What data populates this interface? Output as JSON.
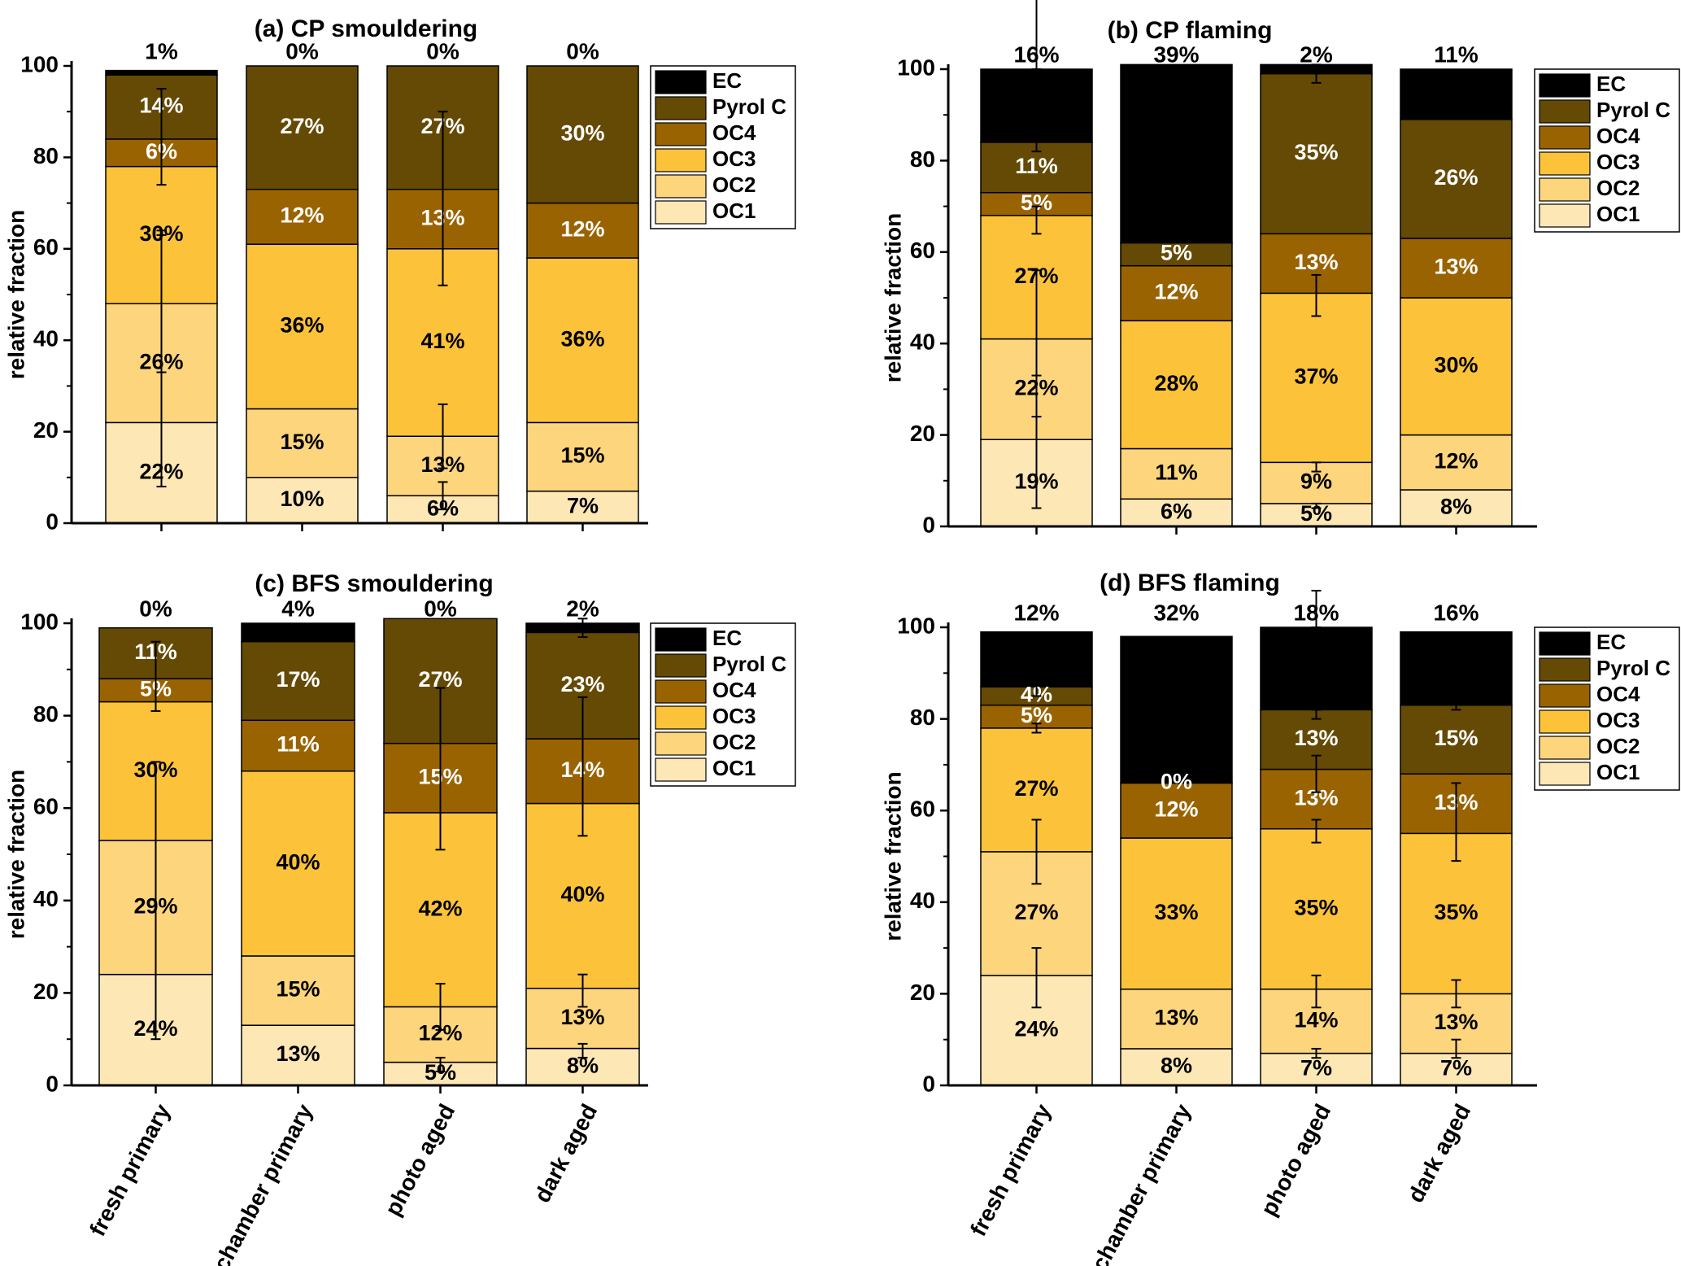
{
  "chart_data": [
    {
      "type": "bar",
      "stacked": true,
      "title": "(a)  CP smouldering",
      "ylabel": "relative fraction",
      "xlabel": "",
      "ylim": [
        0,
        100
      ],
      "yticks": [
        "0",
        "20",
        "40",
        "60",
        "80",
        "100"
      ],
      "categories": [
        "fresh primary",
        "chamber primary",
        "photo aged",
        "dark aged"
      ],
      "top_labels": [
        "1%",
        "0%",
        "0%",
        "0%"
      ],
      "legend": [
        "EC",
        "Pyrol C",
        "OC4",
        "OC3",
        "OC2",
        "OC1"
      ],
      "colors": {
        "OC1": "#FDE7B5",
        "OC2": "#FDD57D",
        "OC3": "#FCC33A",
        "OC4": "#9A6301",
        "Pyrol C": "#654A05",
        "EC": "#000000"
      },
      "series": [
        {
          "name": "OC1",
          "values": [
            22,
            10,
            6,
            7
          ],
          "labels": [
            "22%",
            "10%",
            "6%",
            "7%"
          ]
        },
        {
          "name": "OC2",
          "values": [
            26,
            15,
            13,
            15
          ],
          "labels": [
            "26%",
            "15%",
            "13%",
            "15%"
          ]
        },
        {
          "name": "OC3",
          "values": [
            30,
            36,
            41,
            36
          ],
          "labels": [
            "30%",
            "36%",
            "41%",
            "36%"
          ]
        },
        {
          "name": "OC4",
          "values": [
            6,
            12,
            13,
            12
          ],
          "labels": [
            "6%",
            "12%",
            "13%",
            "12%"
          ]
        },
        {
          "name": "Pyrol C",
          "values": [
            14,
            27,
            27,
            30
          ],
          "labels": [
            "14%",
            "27%",
            "27%",
            "30%"
          ]
        },
        {
          "name": "EC",
          "values": [
            1,
            0,
            0,
            0
          ],
          "labels": [
            "",
            "",
            "",
            ""
          ]
        }
      ],
      "error_bars": [
        {
          "category": 0,
          "lo": 8,
          "hi": 63
        },
        {
          "category": 0,
          "lo": 74,
          "hi": 95
        },
        {
          "category": 0,
          "lo": 33,
          "hi": 64
        },
        {
          "category": 2,
          "lo": 52,
          "hi": 90
        },
        {
          "category": 2,
          "lo": 12,
          "hi": 26
        },
        {
          "category": 2,
          "lo": 3,
          "hi": 9
        }
      ]
    },
    {
      "type": "bar",
      "stacked": true,
      "title": "(b)  CP flaming",
      "ylabel": "relative fraction",
      "xlabel": "",
      "ylim": [
        0,
        100
      ],
      "yticks": [
        "0",
        "20",
        "40",
        "60",
        "80",
        "100"
      ],
      "categories": [
        "fresh primary",
        "chamber primary",
        "photo aged",
        "dark aged"
      ],
      "top_labels": [
        "16%",
        "39%",
        "2%",
        "11%"
      ],
      "legend": [
        "EC",
        "Pyrol C",
        "OC4",
        "OC3",
        "OC2",
        "OC1"
      ],
      "colors": {
        "OC1": "#FDE7B5",
        "OC2": "#FDD57D",
        "OC3": "#FCC33A",
        "OC4": "#9A6301",
        "Pyrol C": "#654A05",
        "EC": "#000000"
      },
      "series": [
        {
          "name": "OC1",
          "values": [
            19,
            6,
            5,
            8
          ],
          "labels": [
            "19%",
            "6%",
            "5%",
            "8%"
          ]
        },
        {
          "name": "OC2",
          "values": [
            22,
            11,
            9,
            12
          ],
          "labels": [
            "22%",
            "11%",
            "9%",
            "12%"
          ]
        },
        {
          "name": "OC3",
          "values": [
            27,
            28,
            37,
            30
          ],
          "labels": [
            "27%",
            "28%",
            "37%",
            "30%"
          ]
        },
        {
          "name": "OC4",
          "values": [
            5,
            12,
            13,
            13
          ],
          "labels": [
            "5%",
            "12%",
            "13%",
            "13%"
          ]
        },
        {
          "name": "Pyrol C",
          "values": [
            11,
            5,
            35,
            26
          ],
          "labels": [
            "11%",
            "5%",
            "35%",
            "26%"
          ]
        },
        {
          "name": "EC",
          "values": [
            16,
            39,
            2,
            11
          ],
          "labels": [
            "",
            "",
            "",
            ""
          ]
        }
      ],
      "error_bars": [
        {
          "category": 0,
          "lo": 4,
          "hi": 33
        },
        {
          "category": 0,
          "lo": 24,
          "hi": 56
        },
        {
          "category": 0,
          "lo": 64,
          "hi": 70
        },
        {
          "category": 0,
          "lo": 82,
          "hi": 85
        },
        {
          "category": 0,
          "lo": 100,
          "hi": 117
        },
        {
          "category": 2,
          "lo": 4,
          "hi": 5
        },
        {
          "category": 2,
          "lo": 12,
          "hi": 14
        },
        {
          "category": 2,
          "lo": 46,
          "hi": 55
        },
        {
          "category": 2,
          "lo": 97,
          "hi": 101
        }
      ]
    },
    {
      "type": "bar",
      "stacked": true,
      "title": "(c)  BFS smouldering",
      "ylabel": "relative fraction",
      "xlabel": "",
      "ylim": [
        0,
        100
      ],
      "yticks": [
        "0",
        "20",
        "40",
        "60",
        "80",
        "100"
      ],
      "categories": [
        "fresh primary",
        "chamber primary",
        "photo aged",
        "dark aged"
      ],
      "top_labels": [
        "0%",
        "4%",
        "0%",
        "2%"
      ],
      "legend": [
        "EC",
        "Pyrol C",
        "OC4",
        "OC3",
        "OC2",
        "OC1"
      ],
      "colors": {
        "OC1": "#FDE7B5",
        "OC2": "#FDD57D",
        "OC3": "#FCC33A",
        "OC4": "#9A6301",
        "Pyrol C": "#654A05",
        "EC": "#000000"
      },
      "series": [
        {
          "name": "OC1",
          "values": [
            24,
            13,
            5,
            8
          ],
          "labels": [
            "24%",
            "13%",
            "5%",
            "8%"
          ]
        },
        {
          "name": "OC2",
          "values": [
            29,
            15,
            12,
            13
          ],
          "labels": [
            "29%",
            "15%",
            "12%",
            "13%"
          ]
        },
        {
          "name": "OC3",
          "values": [
            30,
            40,
            42,
            40
          ],
          "labels": [
            "30%",
            "40%",
            "42%",
            "40%"
          ]
        },
        {
          "name": "OC4",
          "values": [
            5,
            11,
            15,
            14
          ],
          "labels": [
            "5%",
            "11%",
            "15%",
            "14%"
          ]
        },
        {
          "name": "Pyrol C",
          "values": [
            11,
            17,
            27,
            23
          ],
          "labels": [
            "11%",
            "17%",
            "27%",
            "23%"
          ]
        },
        {
          "name": "EC",
          "values": [
            0,
            4,
            0,
            2
          ],
          "labels": [
            "",
            "",
            "",
            ""
          ]
        }
      ],
      "error_bars": [
        {
          "category": 0,
          "lo": 10,
          "hi": 70
        },
        {
          "category": 0,
          "lo": 81,
          "hi": 96
        },
        {
          "category": 2,
          "lo": 3,
          "hi": 6
        },
        {
          "category": 2,
          "lo": 12,
          "hi": 22
        },
        {
          "category": 2,
          "lo": 51,
          "hi": 86
        },
        {
          "category": 3,
          "lo": 6,
          "hi": 9
        },
        {
          "category": 3,
          "lo": 17,
          "hi": 24
        },
        {
          "category": 3,
          "lo": 54,
          "hi": 84
        },
        {
          "category": 3,
          "lo": 97,
          "hi": 101
        }
      ]
    },
    {
      "type": "bar",
      "stacked": true,
      "title": "(d)  BFS flaming",
      "ylabel": "relative fraction",
      "xlabel": "",
      "ylim": [
        0,
        100
      ],
      "yticks": [
        "0",
        "20",
        "40",
        "60",
        "80",
        "100"
      ],
      "categories": [
        "fresh primary",
        "chamber primary",
        "photo aged",
        "dark aged"
      ],
      "top_labels": [
        "12%",
        "32%",
        "18%",
        "16%"
      ],
      "legend": [
        "EC",
        "Pyrol C",
        "OC4",
        "OC3",
        "OC2",
        "OC1"
      ],
      "colors": {
        "OC1": "#FDE7B5",
        "OC2": "#FDD57D",
        "OC3": "#FCC33A",
        "OC4": "#9A6301",
        "Pyrol C": "#654A05",
        "EC": "#000000"
      },
      "series": [
        {
          "name": "OC1",
          "values": [
            24,
            8,
            7,
            7
          ],
          "labels": [
            "24%",
            "8%",
            "7%",
            "7%"
          ]
        },
        {
          "name": "OC2",
          "values": [
            27,
            13,
            14,
            13
          ],
          "labels": [
            "27%",
            "13%",
            "14%",
            "13%"
          ]
        },
        {
          "name": "OC3",
          "values": [
            27,
            33,
            35,
            35
          ],
          "labels": [
            "27%",
            "33%",
            "35%",
            "35%"
          ]
        },
        {
          "name": "OC4",
          "values": [
            5,
            12,
            13,
            13
          ],
          "labels": [
            "5%",
            "12%",
            "13%",
            "13%"
          ]
        },
        {
          "name": "Pyrol C",
          "values": [
            4,
            0,
            13,
            15
          ],
          "labels": [
            "4%",
            "0%",
            "13%",
            "15%"
          ]
        },
        {
          "name": "EC",
          "values": [
            12,
            32,
            18,
            16
          ],
          "labels": [
            "",
            "",
            "",
            ""
          ]
        }
      ],
      "error_bars": [
        {
          "category": 0,
          "lo": 17,
          "hi": 30
        },
        {
          "category": 0,
          "lo": 44,
          "hi": 58
        },
        {
          "category": 0,
          "lo": 77,
          "hi": 79
        },
        {
          "category": 0,
          "lo": 85,
          "hi": 89
        },
        {
          "category": 2,
          "lo": 6,
          "hi": 8
        },
        {
          "category": 2,
          "lo": 17,
          "hi": 24
        },
        {
          "category": 2,
          "lo": 53,
          "hi": 58
        },
        {
          "category": 2,
          "lo": 64,
          "hi": 72
        },
        {
          "category": 2,
          "lo": 80,
          "hi": 82
        },
        {
          "category": 2,
          "lo": 100,
          "hi": 108
        },
        {
          "category": 3,
          "lo": 6,
          "hi": 10
        },
        {
          "category": 3,
          "lo": 17,
          "hi": 23
        },
        {
          "category": 3,
          "lo": 49,
          "hi": 66
        },
        {
          "category": 3,
          "lo": 82,
          "hi": 84
        }
      ]
    }
  ]
}
